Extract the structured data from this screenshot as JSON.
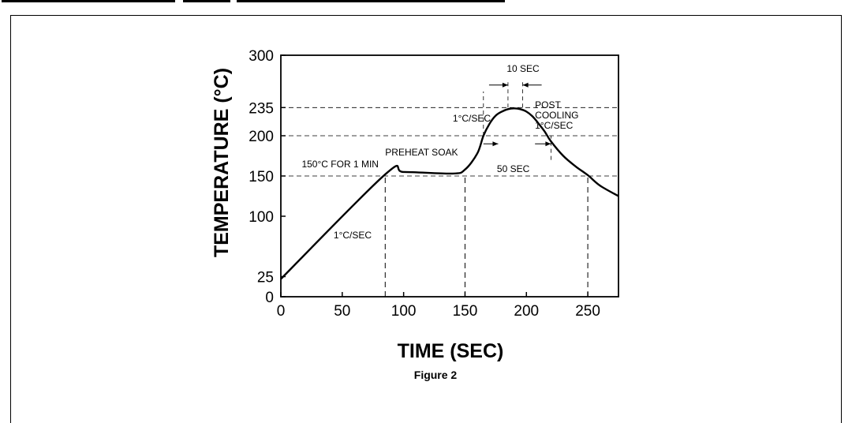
{
  "chart_data": {
    "type": "line",
    "title": "",
    "xlabel": "TIME (SEC)",
    "ylabel": "TEMPERATURE (°C)",
    "caption": "Figure 2",
    "xlim": [
      0,
      275
    ],
    "ylim": [
      0,
      300
    ],
    "x_ticks": [
      0,
      50,
      100,
      150,
      200,
      250
    ],
    "y_ticks": [
      0,
      25,
      100,
      150,
      200,
      235,
      300
    ],
    "grid": false,
    "series": [
      {
        "name": "",
        "x": [
          0,
          85,
          100,
          140,
          150,
          160,
          165,
          170,
          175,
          180,
          185,
          190,
          195,
          200,
          205,
          210,
          215,
          220,
          230,
          240,
          250,
          260,
          275
        ],
        "y": [
          22,
          152,
          155,
          153,
          158,
          178,
          200,
          215,
          225,
          230,
          233,
          234,
          233,
          230,
          224,
          215,
          205,
          193,
          175,
          162,
          151,
          138,
          125
        ]
      }
    ],
    "reference_lines": {
      "horizontal": [
        235,
        200,
        150
      ],
      "vertical": [
        85,
        150,
        250
      ]
    },
    "annotations": [
      {
        "text": "10 SEC"
      },
      {
        "text": "POST"
      },
      {
        "text": "COOLING"
      },
      {
        "text": "1°C/SEC"
      },
      {
        "text": "1°C/SEC"
      },
      {
        "text": "PREHEAT SOAK"
      },
      {
        "text": "150°C FOR 1 MIN"
      },
      {
        "text": "50 SEC"
      },
      {
        "text": "1°C/SEC"
      }
    ]
  }
}
